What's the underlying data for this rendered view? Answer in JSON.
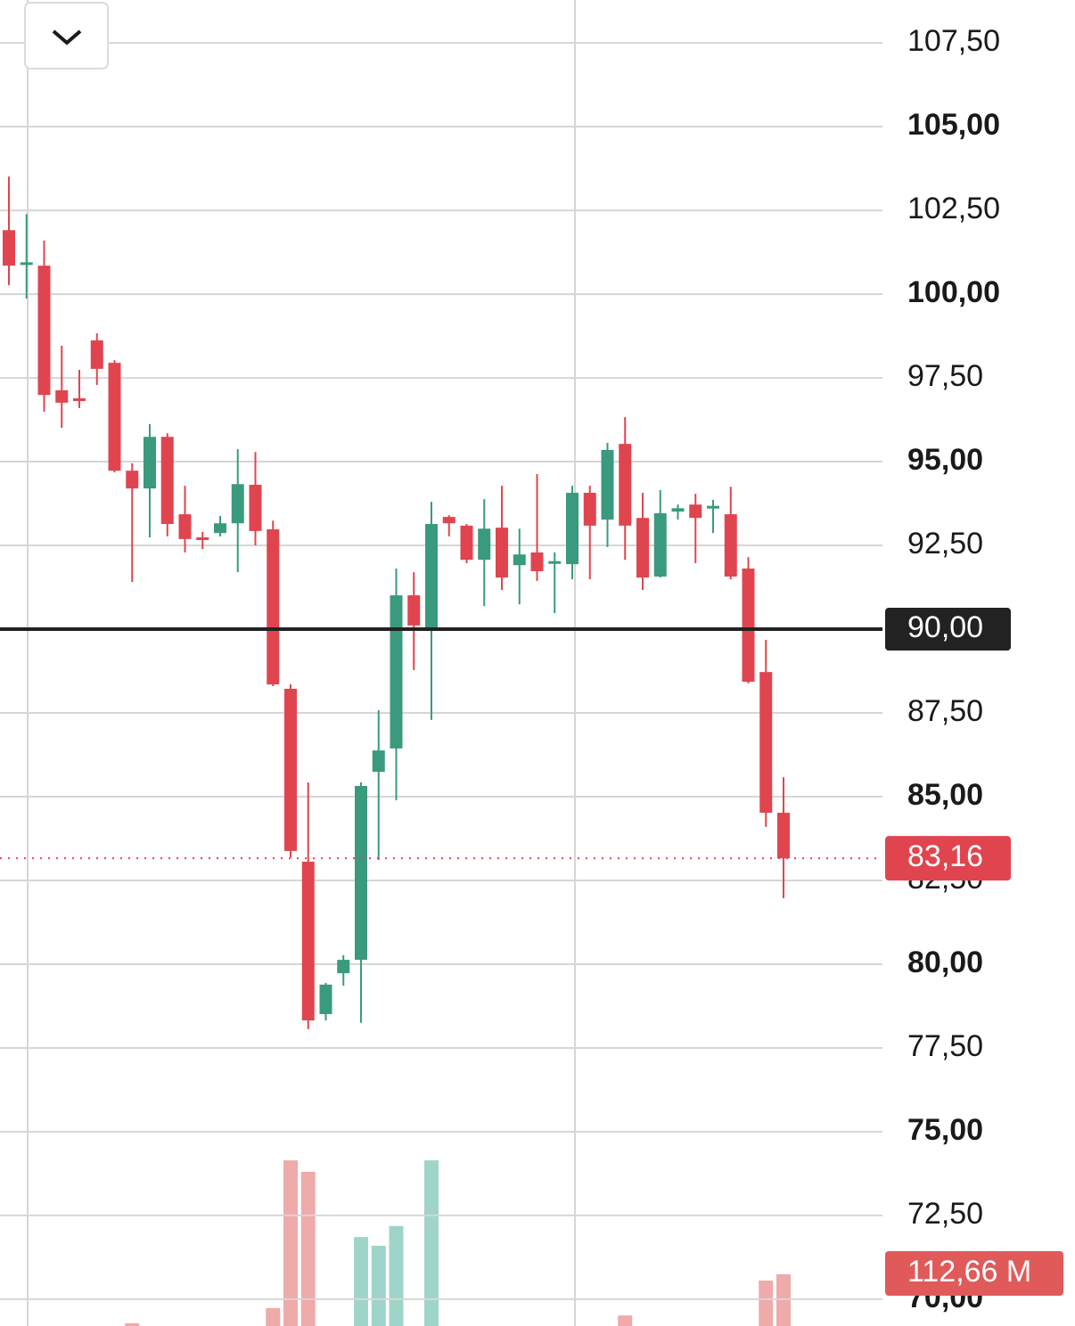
{
  "chart_data": {
    "type": "candlestick",
    "ylim": [
      69.2,
      108.78
    ],
    "yticks": [
      {
        "value": 107.5,
        "label": "107,50"
      },
      {
        "value": 105,
        "label": "105,00"
      },
      {
        "value": 102.5,
        "label": "102,50"
      },
      {
        "value": 100,
        "label": "100,00"
      },
      {
        "value": 97.5,
        "label": "97,50"
      },
      {
        "value": 95,
        "label": "95,00"
      },
      {
        "value": 92.5,
        "label": "92,50"
      },
      {
        "value": 90,
        "label": "90,00"
      },
      {
        "value": 87.5,
        "label": "87,50"
      },
      {
        "value": 85,
        "label": "85,00"
      },
      {
        "value": 82.5,
        "label": "82,50"
      },
      {
        "value": 80,
        "label": "80,00"
      },
      {
        "value": 77.5,
        "label": "77,50"
      },
      {
        "value": 75,
        "label": "75,00"
      },
      {
        "value": 72.5,
        "label": "72,50"
      },
      {
        "value": 70,
        "label": "70,00"
      }
    ],
    "grid": true,
    "up_color": "#3a9a7e",
    "down_color": "#e0454f",
    "volume_up_color": "#9fd5c9",
    "volume_down_color": "#efaaaa",
    "open": [
      101.91,
      100.9,
      100.85,
      97.13,
      96.89,
      98.62,
      97.95,
      94.73,
      94.2,
      95.74,
      93.43,
      92.74,
      92.87,
      93.16,
      94.31,
      92.98,
      88.22,
      83.06,
      78.51,
      79.73,
      80.13,
      85.74,
      86.44,
      91.01,
      90.03,
      93.35,
      93.09,
      92.07,
      93.03,
      91.91,
      92.29,
      91.97,
      91.94,
      94.07,
      93.27,
      95.53,
      93.32,
      91.57,
      93.51,
      93.72,
      93.6,
      93.43,
      91.81,
      88.72,
      84.52
    ],
    "high": [
      103.51,
      102.39,
      101.6,
      98.46,
      97.74,
      98.83,
      98.03,
      94.95,
      96.12,
      95.85,
      94.28,
      92.9,
      93.38,
      95.37,
      95.29,
      93.24,
      88.35,
      85.43,
      79.44,
      80.27,
      85.43,
      87.58,
      91.81,
      91.7,
      93.8,
      93.4,
      93.14,
      93.88,
      94.28,
      93.0,
      94.63,
      92.29,
      94.28,
      94.28,
      95.56,
      96.33,
      94.07,
      94.15,
      93.72,
      94.04,
      93.86,
      94.25,
      92.15,
      89.68,
      85.58
    ],
    "low": [
      100.27,
      99.87,
      96.49,
      96.01,
      96.6,
      97.29,
      94.68,
      91.41,
      92.74,
      92.77,
      92.29,
      92.39,
      92.77,
      91.7,
      92.5,
      88.3,
      83.19,
      78.06,
      78.32,
      79.36,
      78.25,
      83.11,
      84.89,
      88.78,
      87.29,
      92.77,
      91.97,
      90.69,
      91.17,
      90.74,
      91.44,
      90.48,
      91.49,
      91.49,
      92.45,
      92.07,
      91.17,
      91.54,
      93.27,
      91.97,
      92.87,
      91.49,
      88.38,
      84.1,
      81.97
    ],
    "close": [
      100.85,
      100.95,
      96.99,
      96.76,
      96.81,
      97.77,
      94.73,
      94.2,
      95.74,
      93.14,
      92.69,
      92.66,
      93.16,
      94.33,
      92.93,
      88.35,
      83.38,
      78.32,
      79.39,
      80.13,
      85.32,
      86.38,
      91.01,
      90.11,
      93.14,
      93.16,
      92.07,
      93.0,
      91.54,
      92.23,
      91.73,
      92.03,
      94.07,
      93.09,
      95.35,
      93.09,
      91.54,
      93.46,
      93.61,
      93.32,
      93.68,
      91.57,
      88.43,
      84.52,
      83.16
    ],
    "volume": [
      null,
      null,
      null,
      null,
      null,
      null,
      null,
      6,
      null,
      null,
      null,
      null,
      null,
      null,
      null,
      39,
      361,
      336,
      null,
      null,
      194,
      175,
      218,
      null,
      361,
      null,
      null,
      null,
      null,
      null,
      null,
      null,
      null,
      null,
      null,
      23,
      null,
      null,
      null,
      null,
      null,
      null,
      null,
      99,
      112.66
    ],
    "vlim": [
      0,
      2890
    ],
    "reference_line": {
      "value": 90,
      "label": "90,00"
    },
    "last_price": {
      "value": 83.16,
      "label": "83,16"
    },
    "volume_label": {
      "value": 112.66,
      "label": "112,66 M"
    }
  }
}
